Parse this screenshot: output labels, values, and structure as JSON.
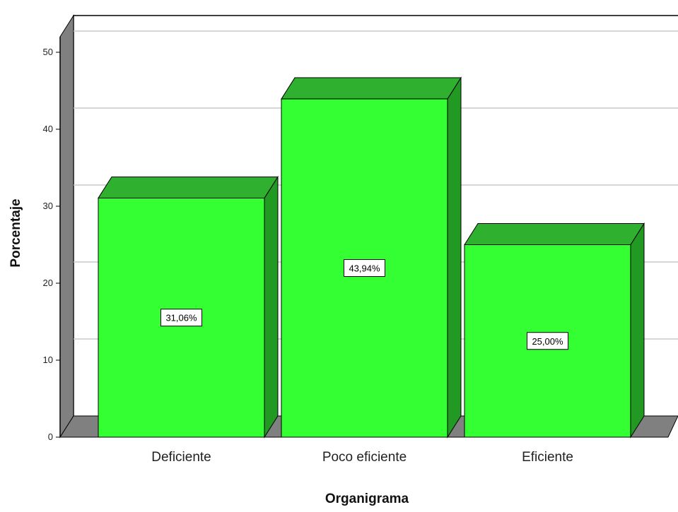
{
  "chart_data": {
    "type": "bar",
    "categories": [
      "Deficiente",
      "Poco eficiente",
      "Eficiente"
    ],
    "values": [
      31.06,
      43.94,
      25.0
    ],
    "data_labels": [
      "31,06%",
      "43,94%",
      "25,00%"
    ],
    "xlabel": "Organigrama",
    "ylabel": "Porcentaje",
    "ylim": [
      0,
      50
    ],
    "yticks": [
      0,
      10,
      20,
      30,
      40,
      50
    ],
    "grid": true,
    "three_d": true,
    "colors": {
      "bar_front": "#33ff33",
      "bar_top": "#2fb02f",
      "bar_side": "#229922",
      "wall": "#808080",
      "grid": "#c8c8c8"
    }
  }
}
